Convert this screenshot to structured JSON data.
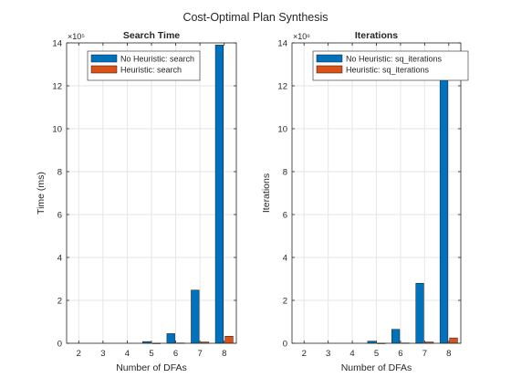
{
  "figure": {
    "title": "Cost-Optimal Plan Synthesis"
  },
  "chart_data": [
    {
      "type": "bar",
      "title": "Search Time",
      "xlabel": "Number of DFAs",
      "ylabel": "Time (ms)",
      "categories": [
        "2",
        "3",
        "4",
        "5",
        "6",
        "7",
        "8"
      ],
      "y_exponent_label": "×10⁵",
      "y_scale": 100000,
      "ylim": [
        0,
        1400000
      ],
      "yticks": [
        0,
        200000,
        400000,
        600000,
        800000,
        1000000,
        1200000,
        1400000
      ],
      "ytick_labels": [
        "0",
        "2",
        "4",
        "6",
        "8",
        "10",
        "12",
        "14"
      ],
      "grid": true,
      "legend_location": "top-left",
      "series": [
        {
          "name": "No Heuristic: search",
          "color": "#0072BD",
          "values": [
            0,
            0,
            0,
            8000,
            45000,
            248000,
            1390000
          ]
        },
        {
          "name": "Heuristic: search",
          "color": "#D95319",
          "values": [
            0,
            0,
            0,
            500,
            1500,
            6000,
            33000
          ]
        }
      ]
    },
    {
      "type": "bar",
      "title": "Iterations",
      "xlabel": "Number of DFAs",
      "ylabel": "Iterations",
      "categories": [
        "2",
        "3",
        "4",
        "5",
        "6",
        "7",
        "8"
      ],
      "y_exponent_label": "×10⁶",
      "y_scale": 1000000,
      "ylim": [
        0,
        14000000
      ],
      "yticks": [
        0,
        2000000,
        4000000,
        6000000,
        8000000,
        10000000,
        12000000,
        14000000
      ],
      "ytick_labels": [
        "0",
        "2",
        "4",
        "6",
        "8",
        "10",
        "12",
        "14"
      ],
      "grid": true,
      "legend_location": "top-left",
      "series": [
        {
          "name": "No Heuristic: sq_iterations",
          "color": "#0072BD",
          "values": [
            0,
            0,
            0,
            100000,
            650000,
            2800000,
            13150000
          ]
        },
        {
          "name": "Heuristic: sq_iterations",
          "color": "#D95319",
          "values": [
            0,
            0,
            0,
            5000,
            15000,
            60000,
            250000
          ]
        }
      ]
    }
  ]
}
